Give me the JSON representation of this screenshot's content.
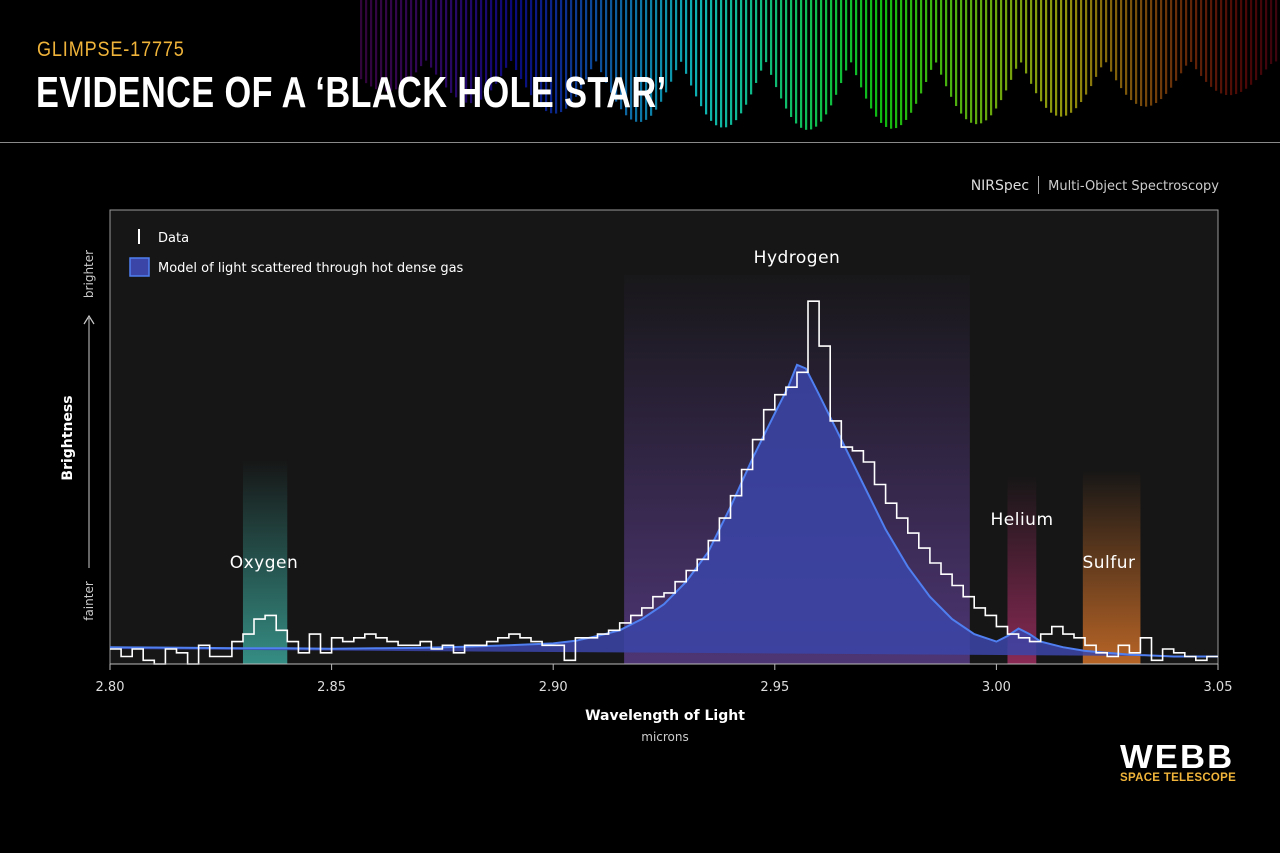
{
  "header": {
    "supertitle": "GLIMPSE-17775",
    "title": "EVIDENCE OF A ‘BLACK HOLE STAR’"
  },
  "instrument": {
    "name": "NIRSpec",
    "mode": "Multi-Object Spectroscopy"
  },
  "logo": {
    "word": "WEBB",
    "subtitle": "SPACE TELESCOPE"
  },
  "colors": {
    "background": "#000000",
    "plot_bg": "#161616",
    "model": "#4f7ff0",
    "model_fill": "#3b45a8",
    "data_line": "#ffffff",
    "supertitle": "#f0b43a",
    "oxygen": "#3fb5a8",
    "hydrogen": "#7a4fc0",
    "helium": "#b0306a",
    "sulfur": "#e0782a"
  },
  "chart_data": {
    "type": "line",
    "xlabel": "Wavelength of Light",
    "xunit": "microns",
    "ylabel": "Brightness",
    "y_low_label": "fainter",
    "y_high_label": "brighter",
    "xlim": [
      2.8,
      3.05
    ],
    "ylim": [
      0,
      1
    ],
    "xticks": [
      "2.80",
      "2.85",
      "2.90",
      "2.95",
      "3.00",
      "3.05"
    ],
    "grid": false,
    "legend_position": "top-left",
    "legend": [
      {
        "label": "Data",
        "style": "white-line"
      },
      {
        "label": "Model of light scattered through hot dense gas",
        "style": "blue-fill"
      }
    ],
    "elements": [
      {
        "name": "Oxygen",
        "band": [
          2.83,
          2.84
        ],
        "color": "#3fb5a8"
      },
      {
        "name": "Hydrogen",
        "band": [
          2.916,
          2.994
        ],
        "color": "#7a4fc0"
      },
      {
        "name": "Helium",
        "band": [
          3.0025,
          3.009
        ],
        "color": "#b0306a"
      },
      {
        "name": "Sulfur",
        "band": [
          3.0195,
          3.0325
        ],
        "color": "#e0782a"
      }
    ],
    "series": [
      {
        "name": "Data",
        "x": [
          2.8,
          2.8025,
          2.805,
          2.8075,
          2.81,
          2.8125,
          2.815,
          2.8175,
          2.82,
          2.8225,
          2.825,
          2.8275,
          2.83,
          2.8325,
          2.835,
          2.8375,
          2.84,
          2.8425,
          2.845,
          2.8475,
          2.85,
          2.8525,
          2.855,
          2.8575,
          2.86,
          2.8625,
          2.865,
          2.8675,
          2.87,
          2.8725,
          2.875,
          2.8775,
          2.88,
          2.8825,
          2.885,
          2.8875,
          2.89,
          2.8925,
          2.895,
          2.8975,
          2.9,
          2.9025,
          2.905,
          2.9075,
          2.91,
          2.9125,
          2.915,
          2.9175,
          2.92,
          2.9225,
          2.925,
          2.9275,
          2.93,
          2.9325,
          2.935,
          2.9375,
          2.94,
          2.9425,
          2.945,
          2.9475,
          2.95,
          2.9525,
          2.955,
          2.9575,
          2.96,
          2.9625,
          2.965,
          2.9675,
          2.97,
          2.9725,
          2.975,
          2.9775,
          2.98,
          2.9825,
          2.985,
          2.9875,
          2.99,
          2.9925,
          2.995,
          2.9975,
          3.0,
          3.0025,
          3.005,
          3.0075,
          3.01,
          3.0125,
          3.015,
          3.0175,
          3.02,
          3.0225,
          3.025,
          3.0275,
          3.03,
          3.0325,
          3.035,
          3.0375,
          3.04,
          3.0425,
          3.045,
          3.0475
        ],
        "y": [
          0.04,
          0.02,
          0.04,
          0.01,
          0.0,
          0.04,
          0.03,
          0.0,
          0.05,
          0.02,
          0.02,
          0.06,
          0.08,
          0.12,
          0.13,
          0.09,
          0.06,
          0.03,
          0.08,
          0.03,
          0.07,
          0.06,
          0.07,
          0.08,
          0.07,
          0.06,
          0.05,
          0.05,
          0.06,
          0.04,
          0.05,
          0.03,
          0.05,
          0.05,
          0.06,
          0.07,
          0.08,
          0.07,
          0.06,
          0.05,
          0.05,
          0.01,
          0.07,
          0.07,
          0.08,
          0.09,
          0.11,
          0.13,
          0.15,
          0.18,
          0.19,
          0.22,
          0.25,
          0.28,
          0.33,
          0.39,
          0.45,
          0.52,
          0.6,
          0.68,
          0.72,
          0.74,
          0.78,
          0.97,
          0.85,
          0.65,
          0.58,
          0.57,
          0.54,
          0.48,
          0.43,
          0.39,
          0.35,
          0.31,
          0.27,
          0.24,
          0.21,
          0.18,
          0.15,
          0.13,
          0.1,
          0.08,
          0.07,
          0.06,
          0.08,
          0.1,
          0.08,
          0.07,
          0.05,
          0.03,
          0.02,
          0.05,
          0.03,
          0.07,
          0.01,
          0.04,
          0.03,
          0.02,
          0.01,
          0.02
        ]
      },
      {
        "name": "Model of light scattered through hot dense gas",
        "x": [
          2.8,
          2.81,
          2.82,
          2.83,
          2.84,
          2.85,
          2.86,
          2.87,
          2.88,
          2.89,
          2.9,
          2.905,
          2.91,
          2.915,
          2.92,
          2.925,
          2.93,
          2.935,
          2.94,
          2.945,
          2.95,
          2.953,
          2.955,
          2.957,
          2.96,
          2.965,
          2.97,
          2.975,
          2.98,
          2.985,
          2.99,
          2.995,
          3.0,
          3.0025,
          3.005,
          3.0075,
          3.01,
          3.015,
          3.02,
          3.03,
          3.04,
          3.05
        ],
        "y": [
          0.045,
          0.044,
          0.043,
          0.042,
          0.042,
          0.041,
          0.042,
          0.043,
          0.046,
          0.05,
          0.055,
          0.062,
          0.075,
          0.09,
          0.12,
          0.16,
          0.22,
          0.3,
          0.42,
          0.55,
          0.67,
          0.74,
          0.8,
          0.79,
          0.72,
          0.6,
          0.48,
          0.36,
          0.26,
          0.18,
          0.12,
          0.08,
          0.06,
          0.075,
          0.095,
          0.08,
          0.06,
          0.045,
          0.035,
          0.025,
          0.02,
          0.02
        ]
      }
    ]
  }
}
